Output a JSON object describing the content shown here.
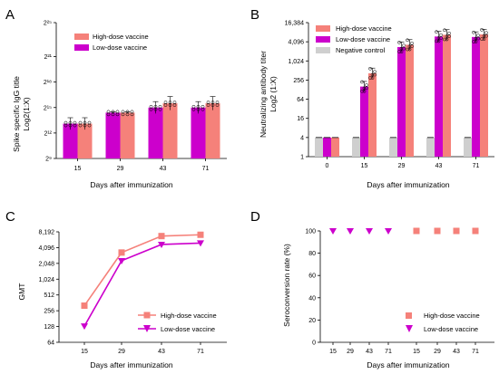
{
  "colors": {
    "high": "#f5817a",
    "low": "#cc00cc",
    "neg": "#cfcfcf",
    "axis": "#000000"
  },
  "chart_data": [
    {
      "panel": "A",
      "type": "bar",
      "ylabel_lines": [
        "Spike specific IgG title",
        "Log2(1:X)"
      ],
      "xlabel": "Days after immunization",
      "categories": [
        "15",
        "29",
        "43",
        "71"
      ],
      "y_scale": "log2",
      "ylim": [
        9,
        25
      ],
      "y_ticks": [
        9,
        12,
        15,
        18,
        21,
        25
      ],
      "y_tick_labels": [
        "2⁹",
        "2¹²",
        "2¹⁵",
        "2¹⁸",
        "2²¹",
        "2²⁵"
      ],
      "series": [
        {
          "name": "High-dose vaccine",
          "values": [
            13.1,
            14.4,
            15.5,
            15.5
          ],
          "errors": [
            0.7,
            0.1,
            0.8,
            0.8
          ]
        },
        {
          "name": "Low-dose vaccine",
          "values": [
            13.1,
            14.4,
            15.0,
            15.0
          ],
          "errors": [
            0.7,
            0.1,
            0.7,
            0.7
          ]
        }
      ],
      "legend_position": "top-left"
    },
    {
      "panel": "B",
      "type": "bar",
      "ylabel_lines": [
        "Neutralizing antibody titer",
        "Log2 (1:X)"
      ],
      "xlabel": "Days after immunization",
      "categories": [
        "0",
        "15",
        "29",
        "43",
        "71"
      ],
      "y_scale": "log2",
      "ylim": [
        1,
        16384
      ],
      "y_ticks": [
        1,
        4,
        16,
        64,
        256,
        1024,
        4096,
        16384
      ],
      "y_tick_labels": [
        "1",
        "4",
        "16",
        "64",
        "256",
        "1,024",
        "4,096",
        "16,384"
      ],
      "series": [
        {
          "name": "High-dose vaccine",
          "values": [
            4,
            420,
            3300,
            6800,
            7000
          ]
        },
        {
          "name": "Low-dose vaccine",
          "values": [
            4,
            160,
            2800,
            6000,
            5800
          ]
        },
        {
          "name": "Negative control",
          "values": [
            4,
            4,
            4,
            4,
            4
          ]
        }
      ],
      "legend_position": "top"
    },
    {
      "panel": "C",
      "type": "line",
      "ylabel": "GMT",
      "xlabel": "Days after immunization",
      "categories": [
        "15",
        "29",
        "43",
        "71"
      ],
      "y_scale": "log2",
      "ylim": [
        64,
        8192
      ],
      "y_ticks": [
        64,
        128,
        256,
        512,
        1024,
        2048,
        4096,
        8192
      ],
      "y_tick_labels": [
        "64",
        "128",
        "256",
        "512",
        "1,024",
        "2,048",
        "4,096",
        "8,192"
      ],
      "series": [
        {
          "name": "High-dose vaccine",
          "marker": "square",
          "values": [
            320,
            3300,
            6800,
            7200
          ]
        },
        {
          "name": "Low-dose vaccine",
          "marker": "triangle-down",
          "values": [
            130,
            2300,
            4700,
            5000
          ]
        }
      ],
      "legend_position": "bottom-right"
    },
    {
      "panel": "D",
      "type": "scatter",
      "ylabel": "Seroconversion rate (%)",
      "xlabel": "Days after immunization",
      "categories": [
        "15",
        "29",
        "43",
        "71",
        "15",
        "29",
        "43",
        "71"
      ],
      "ylim": [
        0,
        100
      ],
      "y_ticks": [
        0,
        20,
        40,
        60,
        80,
        100
      ],
      "y_tick_labels": [
        "0",
        "20",
        "40",
        "60",
        "80",
        "100"
      ],
      "series": [
        {
          "name": "Low-dose vaccine",
          "marker": "triangle-down",
          "positions": [
            0,
            1,
            2,
            3
          ],
          "values": [
            100,
            100,
            100,
            100
          ]
        },
        {
          "name": "High-dose vaccine",
          "marker": "square",
          "positions": [
            4,
            5,
            6,
            7
          ],
          "values": [
            100,
            100,
            100,
            100
          ]
        }
      ],
      "legend_position": "bottom-right"
    }
  ]
}
